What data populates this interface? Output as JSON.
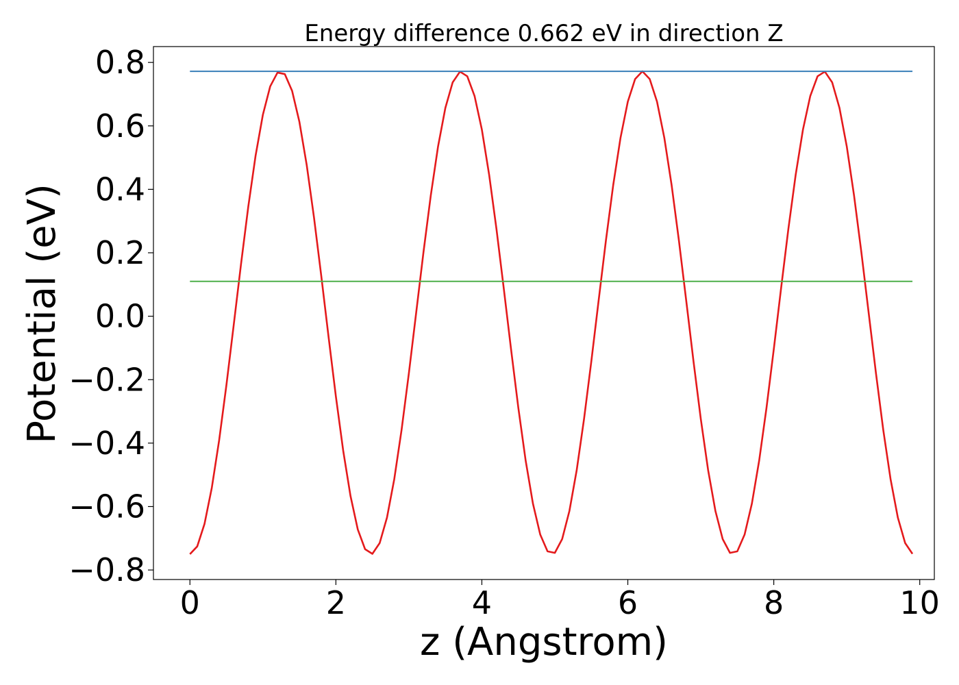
{
  "chart_data": {
    "type": "line",
    "title": "Energy difference 0.662 eV in direction Z",
    "xlabel": "z (Angstrom)",
    "ylabel": "Potential (eV)",
    "xlim": [
      -0.5,
      10.2
    ],
    "ylim": [
      -0.83,
      0.85
    ],
    "x_ticks": [
      0,
      2,
      4,
      6,
      8,
      10
    ],
    "x_tick_labels": [
      "0",
      "2",
      "4",
      "6",
      "8",
      "10"
    ],
    "y_ticks": [
      -0.8,
      -0.6,
      -0.4,
      -0.2,
      0.0,
      0.2,
      0.4,
      0.6,
      0.8
    ],
    "y_tick_labels": [
      "−0.8",
      "−0.6",
      "−0.4",
      "−0.2",
      "0.0",
      "0.2",
      "0.4",
      "0.6",
      "0.8"
    ],
    "grid": false,
    "series": [
      {
        "color": "#e41a1c",
        "kind": "sinusoid",
        "x_start": 0,
        "x_end": 9.9,
        "x_step": 0.1,
        "mean": 0.011,
        "amplitude": 0.761,
        "period": 2.48,
        "min_at_x": 0,
        "y_min": -0.75,
        "y_max": 0.772
      },
      {
        "color": "#377eb8",
        "kind": "horizontal",
        "x_start": 0,
        "x_end": 9.9,
        "y": 0.772
      },
      {
        "color": "#4daf4a",
        "kind": "horizontal",
        "x_start": 0,
        "x_end": 9.9,
        "y": 0.11
      }
    ]
  }
}
